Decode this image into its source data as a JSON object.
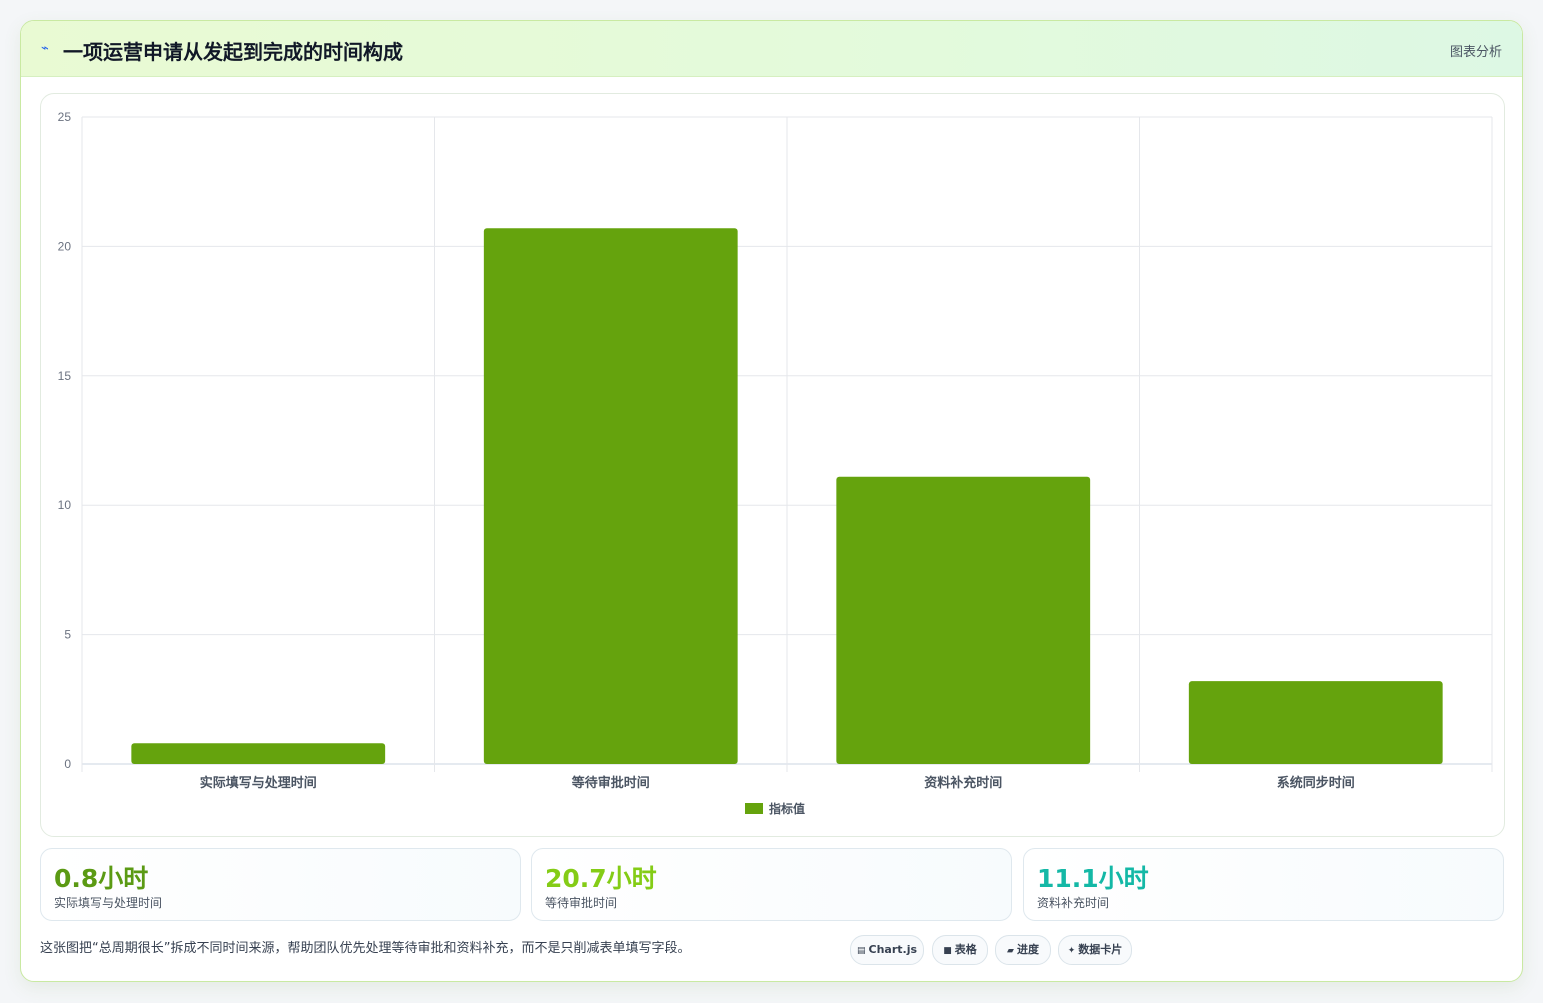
{
  "header": {
    "icon": "lightning-icon",
    "title": "一项运营申请从发起到完成的时间构成",
    "badge": "图表分析"
  },
  "chart_data": {
    "type": "bar",
    "categories": [
      "实际填写与处理时间",
      "等待审批时间",
      "资料补充时间",
      "系统同步时间"
    ],
    "series": [
      {
        "name": "指标值",
        "values": [
          0.8,
          20.7,
          11.1,
          3.2
        ],
        "color": "#65a30d"
      }
    ],
    "ylim": [
      0,
      25
    ],
    "yticks": [
      0,
      5,
      10,
      15,
      20,
      25
    ],
    "grid": true,
    "legend_position": "bottom"
  },
  "stats": [
    {
      "value": "0.8小时",
      "label": "实际填写与处理时间",
      "color": "#5b9a14"
    },
    {
      "value": "20.7小时",
      "label": "等待审批时间",
      "color": "#84cc16"
    },
    {
      "value": "11.1小时",
      "label": "资料补充时间",
      "color": "#14b8a6"
    }
  ],
  "footnote": "这张图把“总周期很长”拆成不同时间来源，帮助团队优先处理等待审批和资料补充，而不是只削减表单填写字段。",
  "chips": [
    {
      "icon": "chart-icon",
      "glyph": "▤",
      "label": "Chart.js"
    },
    {
      "icon": "table-icon",
      "glyph": "■",
      "label": "表格"
    },
    {
      "icon": "progress-icon",
      "glyph": "▰",
      "label": "进度"
    },
    {
      "icon": "sparkle-icon",
      "glyph": "✦",
      "label": "数据卡片"
    }
  ]
}
